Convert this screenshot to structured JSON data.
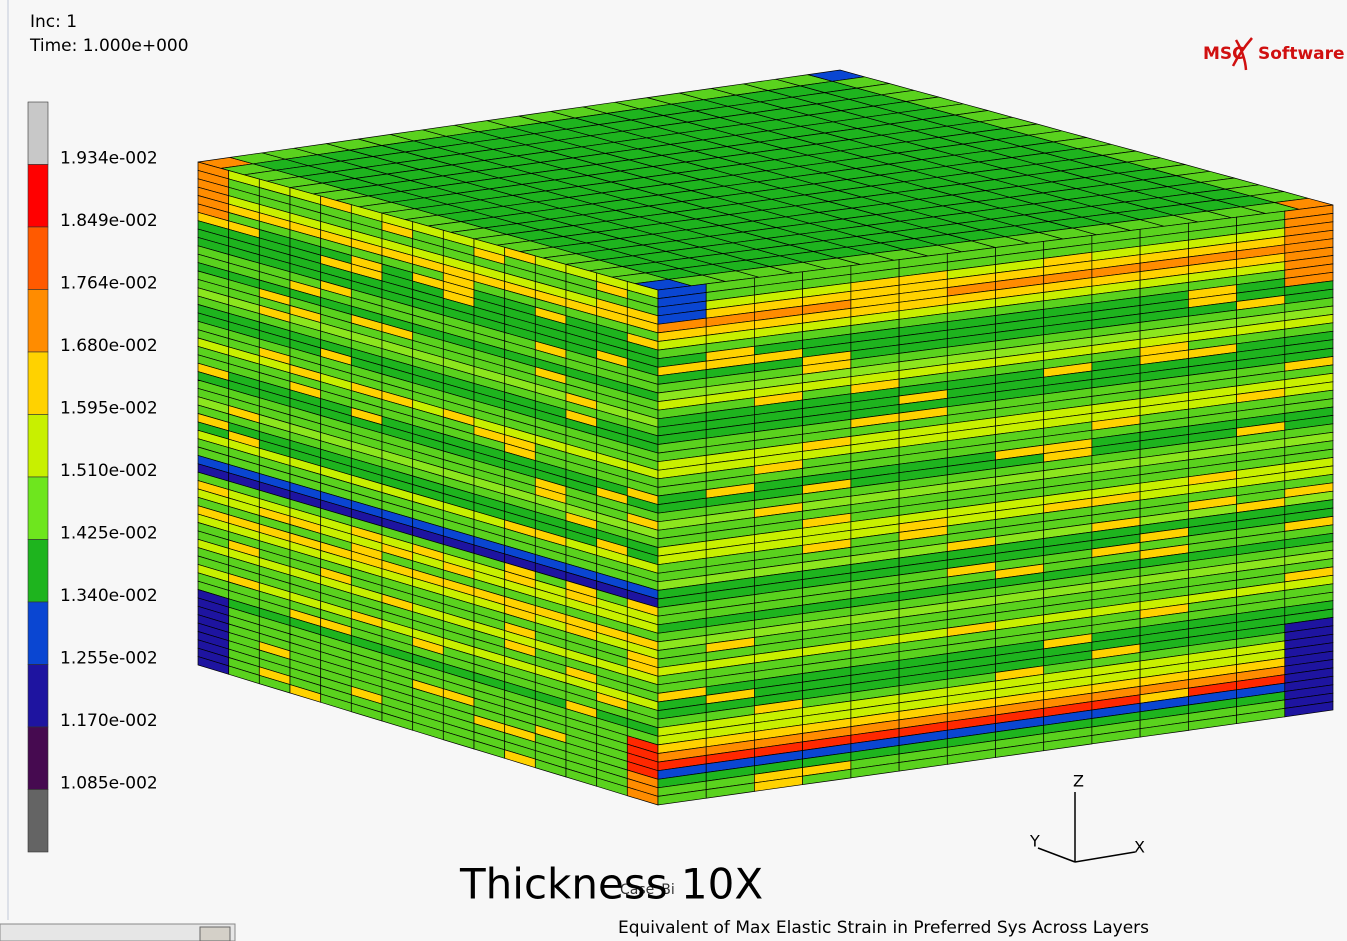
{
  "header": {
    "increment": "Inc:  1",
    "time": "Time:  1.000e+000"
  },
  "logo": {
    "left": "MSC",
    "right": "Software"
  },
  "legend": {
    "colors": [
      "#c8c8c8",
      "#ff0000",
      "#ff5a00",
      "#ff8c00",
      "#ffd200",
      "#c8f000",
      "#6ee61e",
      "#1eb41e",
      "#0a46d2",
      "#1e14a0",
      "#460a50",
      "#646464"
    ],
    "labels": [
      "1.934e-002",
      "1.849e-002",
      "1.764e-002",
      "1.680e-002",
      "1.595e-002",
      "1.510e-002",
      "1.425e-002",
      "1.340e-002",
      "1.255e-002",
      "1.170e-002",
      "1.085e-002"
    ]
  },
  "axes": {
    "z": "Z",
    "y": "Y",
    "x": "X"
  },
  "overlay_title": "Thickness 10X",
  "case_label": "Case_Bi",
  "footer": "Equivalent of Max Elastic Strain in Preferred Sys Across Layers"
}
